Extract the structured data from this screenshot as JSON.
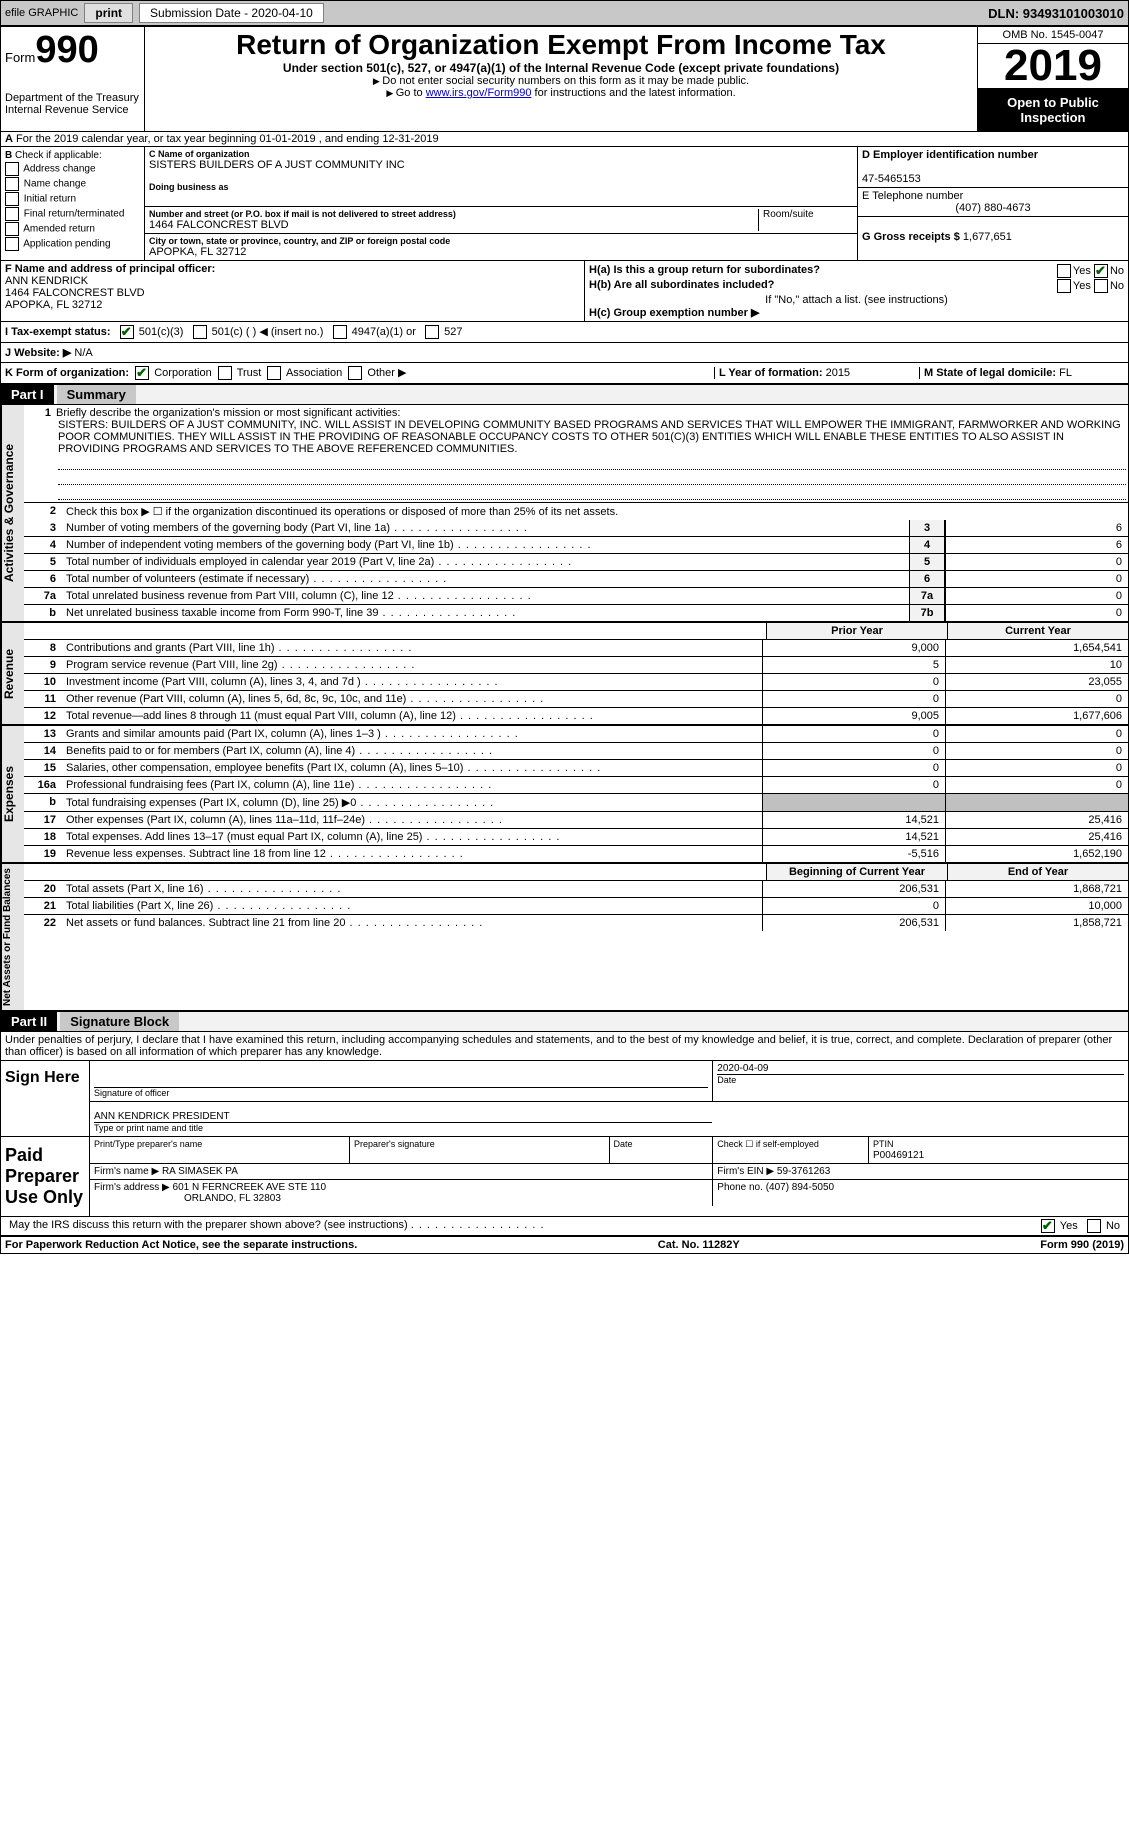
{
  "topBar": {
    "efile": "efile GRAPHIC",
    "print": "print",
    "submission": "Submission Date - 2020-04-10",
    "dln": "DLN: 93493101003010"
  },
  "header": {
    "formLabel": "Form",
    "formNumber": "990",
    "dept1": "Department of the Treasury",
    "dept2": "Internal Revenue Service",
    "title": "Return of Organization Exempt From Income Tax",
    "subtitle": "Under section 501(c), 527, or 4947(a)(1) of the Internal Revenue Code (except private foundations)",
    "line1": "Do not enter social security numbers on this form as it may be made public.",
    "line2a": "Go to ",
    "line2link": "www.irs.gov/Form990",
    "line2b": " for instructions and the latest information.",
    "omb": "OMB No. 1545-0047",
    "year": "2019",
    "open": "Open to Public Inspection"
  },
  "lineA": "For the 2019 calendar year, or tax year beginning 01-01-2019    , and ending 12-31-2019",
  "colB": {
    "header": "Check if applicable:",
    "i1": "Address change",
    "i2": "Name change",
    "i3": "Initial return",
    "i4": "Final return/terminated",
    "i5": "Amended return",
    "i6": "Application pending"
  },
  "colC": {
    "nameLabel": "C Name of organization",
    "nameVal": "SISTERS BUILDERS OF A JUST COMMUNITY INC",
    "dba": "Doing business as",
    "addrLabel": "Number and street (or P.O. box if mail is not delivered to street address)",
    "addrVal": "1464 FALCONCREST BLVD",
    "roomLabel": "Room/suite",
    "cityLabel": "City or town, state or province, country, and ZIP or foreign postal code",
    "cityVal": "APOPKA, FL  32712"
  },
  "colD": {
    "einLabel": "D Employer identification number",
    "einVal": "47-5465153",
    "telLabel": "E Telephone number",
    "telVal": "(407) 880-4673",
    "grossLabel": "G Gross receipts $",
    "grossVal": "1,677,651"
  },
  "colF": {
    "label": "F  Name and address of principal officer:",
    "name": "ANN KENDRICK",
    "addr1": "1464 FALCONCREST BLVD",
    "addr2": "APOPKA, FL  32712"
  },
  "colH": {
    "ha": "H(a)  Is this a group return for subordinates?",
    "hb": "H(b)  Are all subordinates included?",
    "hbNote": "If \"No,\" attach a list. (see instructions)",
    "hc": "H(c)  Group exemption number ▶",
    "yes": "Yes",
    "no": "No"
  },
  "rowI": {
    "label": "I  Tax-exempt status:",
    "o1": "501(c)(3)",
    "o2": "501(c) (   ) ◀ (insert no.)",
    "o3": "4947(a)(1) or",
    "o4": "527"
  },
  "rowJ": {
    "label": "J  Website: ▶",
    "val": "N/A"
  },
  "rowK": {
    "label": "K Form of organization:",
    "o1": "Corporation",
    "o2": "Trust",
    "o3": "Association",
    "o4": "Other ▶",
    "lLabel": "L Year of formation:",
    "lVal": "2015",
    "mLabel": "M State of legal domicile:",
    "mVal": "FL"
  },
  "partI": {
    "header": "Part I",
    "title": "Summary"
  },
  "governance": {
    "label": "Activities & Governance",
    "q1": "Briefly describe the organization's mission or most significant activities:",
    "mission": "SISTERS: BUILDERS OF A JUST COMMUNITY, INC. WILL ASSIST IN DEVELOPING COMMUNITY BASED PROGRAMS AND SERVICES THAT WILL EMPOWER THE IMMIGRANT, FARMWORKER AND WORKING POOR COMMUNITIES. THEY WILL ASSIST IN THE PROVIDING OF REASONABLE OCCUPANCY COSTS TO OTHER 501(C)(3) ENTITIES WHICH WILL ENABLE THESE ENTITIES TO ALSO ASSIST IN PROVIDING PROGRAMS AND SERVICES TO THE ABOVE REFERENCED COMMUNITIES.",
    "q2": "Check this box ▶ ☐ if the organization discontinued its operations or disposed of more than 25% of its net assets.",
    "lines": [
      {
        "n": "3",
        "t": "Number of voting members of the governing body (Part VI, line 1a)",
        "k": "3",
        "v": "6"
      },
      {
        "n": "4",
        "t": "Number of independent voting members of the governing body (Part VI, line 1b)",
        "k": "4",
        "v": "6"
      },
      {
        "n": "5",
        "t": "Total number of individuals employed in calendar year 2019 (Part V, line 2a)",
        "k": "5",
        "v": "0"
      },
      {
        "n": "6",
        "t": "Total number of volunteers (estimate if necessary)",
        "k": "6",
        "v": "0"
      },
      {
        "n": "7a",
        "t": "Total unrelated business revenue from Part VIII, column (C), line 12",
        "k": "7a",
        "v": "0"
      },
      {
        "n": "b",
        "t": "Net unrelated business taxable income from Form 990-T, line 39",
        "k": "7b",
        "v": "0"
      }
    ]
  },
  "revenue": {
    "label": "Revenue",
    "priorHeader": "Prior Year",
    "currentHeader": "Current Year",
    "lines": [
      {
        "n": "8",
        "t": "Contributions and grants (Part VIII, line 1h)",
        "p": "9,000",
        "c": "1,654,541"
      },
      {
        "n": "9",
        "t": "Program service revenue (Part VIII, line 2g)",
        "p": "5",
        "c": "10"
      },
      {
        "n": "10",
        "t": "Investment income (Part VIII, column (A), lines 3, 4, and 7d )",
        "p": "0",
        "c": "23,055"
      },
      {
        "n": "11",
        "t": "Other revenue (Part VIII, column (A), lines 5, 6d, 8c, 9c, 10c, and 11e)",
        "p": "0",
        "c": "0"
      },
      {
        "n": "12",
        "t": "Total revenue—add lines 8 through 11 (must equal Part VIII, column (A), line 12)",
        "p": "9,005",
        "c": "1,677,606"
      }
    ]
  },
  "expenses": {
    "label": "Expenses",
    "lines": [
      {
        "n": "13",
        "t": "Grants and similar amounts paid (Part IX, column (A), lines 1–3 )",
        "p": "0",
        "c": "0"
      },
      {
        "n": "14",
        "t": "Benefits paid to or for members (Part IX, column (A), line 4)",
        "p": "0",
        "c": "0"
      },
      {
        "n": "15",
        "t": "Salaries, other compensation, employee benefits (Part IX, column (A), lines 5–10)",
        "p": "0",
        "c": "0"
      },
      {
        "n": "16a",
        "t": "Professional fundraising fees (Part IX, column (A), line 11e)",
        "p": "0",
        "c": "0"
      },
      {
        "n": "b",
        "t": "Total fundraising expenses (Part IX, column (D), line 25) ▶0",
        "p": "",
        "c": ""
      },
      {
        "n": "17",
        "t": "Other expenses (Part IX, column (A), lines 11a–11d, 11f–24e)",
        "p": "14,521",
        "c": "25,416"
      },
      {
        "n": "18",
        "t": "Total expenses. Add lines 13–17 (must equal Part IX, column (A), line 25)",
        "p": "14,521",
        "c": "25,416"
      },
      {
        "n": "19",
        "t": "Revenue less expenses. Subtract line 18 from line 12",
        "p": "-5,516",
        "c": "1,652,190"
      }
    ]
  },
  "netassets": {
    "label": "Net Assets or Fund Balances",
    "h1": "Beginning of Current Year",
    "h2": "End of Year",
    "lines": [
      {
        "n": "20",
        "t": "Total assets (Part X, line 16)",
        "p": "206,531",
        "c": "1,868,721"
      },
      {
        "n": "21",
        "t": "Total liabilities (Part X, line 26)",
        "p": "0",
        "c": "10,000"
      },
      {
        "n": "22",
        "t": "Net assets or fund balances. Subtract line 21 from line 20",
        "p": "206,531",
        "c": "1,858,721"
      }
    ]
  },
  "partII": {
    "header": "Part II",
    "title": "Signature Block",
    "declaration": "Under penalties of perjury, I declare that I have examined this return, including accompanying schedules and statements, and to the best of my knowledge and belief, it is true, correct, and complete. Declaration of preparer (other than officer) is based on all information of which preparer has any knowledge."
  },
  "sign": {
    "label": "Sign Here",
    "sigOfficer": "Signature of officer",
    "date": "2020-04-09",
    "dateLabel": "Date",
    "name": "ANN KENDRICK  PRESIDENT",
    "nameLabel": "Type or print name and title"
  },
  "preparer": {
    "label": "Paid Preparer Use Only",
    "nameLabel": "Print/Type preparer's name",
    "sigLabel": "Preparer's signature",
    "dateLabel": "Date",
    "checkLabel": "Check ☐ if self-employed",
    "ptinLabel": "PTIN",
    "ptin": "P00469121",
    "firmNameLabel": "Firm's name    ▶",
    "firmName": "RA SIMASEK PA",
    "firmEinLabel": "Firm's EIN ▶",
    "firmEin": "59-3761263",
    "firmAddrLabel": "Firm's address ▶",
    "firmAddr1": "601 N FERNCREEK AVE STE 110",
    "firmAddr2": "ORLANDO, FL  32803",
    "phoneLabel": "Phone no.",
    "phone": "(407) 894-5050"
  },
  "discuss": {
    "text": "May the IRS discuss this return with the preparer shown above? (see instructions)",
    "yes": "Yes",
    "no": "No"
  },
  "footer": {
    "left": "For Paperwork Reduction Act Notice, see the separate instructions.",
    "center": "Cat. No. 11282Y",
    "right": "Form 990 (2019)"
  }
}
